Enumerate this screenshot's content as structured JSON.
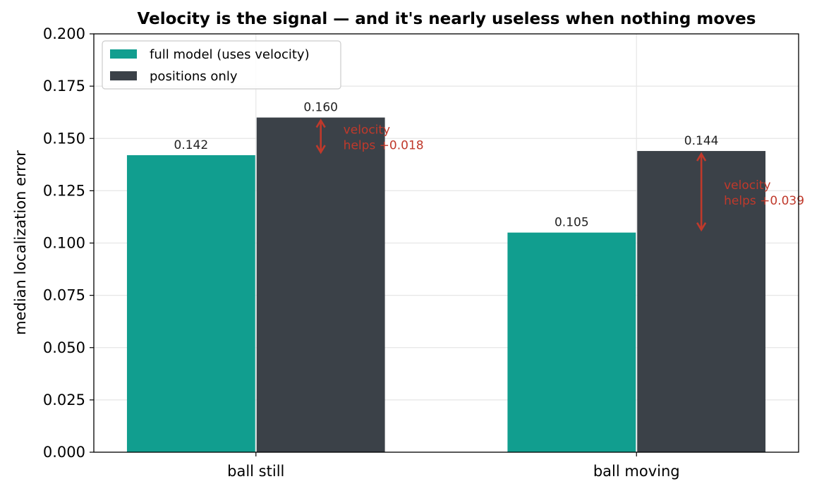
{
  "chart_data": {
    "type": "bar",
    "title": "Velocity is the signal — and it's nearly useless when nothing moves",
    "xlabel": "",
    "ylabel": "median localization error",
    "ylim": [
      0,
      0.2
    ],
    "yticks": [
      "0.000",
      "0.025",
      "0.050",
      "0.075",
      "0.100",
      "0.125",
      "0.150",
      "0.175",
      "0.200"
    ],
    "categories": [
      "ball still",
      "ball moving"
    ],
    "series": [
      {
        "name": "full model (uses velocity)",
        "color": "#119e8f",
        "values": [
          0.142,
          0.105
        ],
        "labels": [
          "0.142",
          "0.105"
        ]
      },
      {
        "name": "positions only",
        "color": "#3b4148",
        "values": [
          0.16,
          0.144
        ],
        "labels": [
          "0.160",
          "0.144"
        ]
      }
    ],
    "annotations": [
      {
        "category_index": 0,
        "from": 0.16,
        "to": 0.142,
        "lines": [
          "velocity",
          "helps +0.018"
        ]
      },
      {
        "category_index": 1,
        "from": 0.144,
        "to": 0.105,
        "lines": [
          "velocity",
          "helps +0.039"
        ]
      }
    ],
    "grid": true,
    "legend_position": "top-left",
    "annotation_color": "#c0392b"
  }
}
